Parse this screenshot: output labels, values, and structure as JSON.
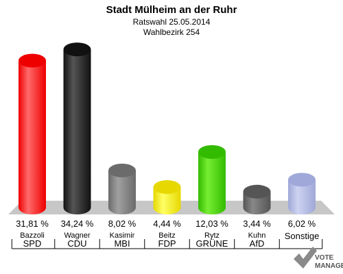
{
  "header": {
    "title": "Stadt Mülheim an der Ruhr",
    "subtitle1": "Ratswahl 25.05.2014",
    "subtitle2": "Wahlbezirk 254"
  },
  "logo": {
    "line1": "VOTE",
    "line2": "MANAGER"
  },
  "chart_data": {
    "type": "bar",
    "title": "Stadt Mülheim an der Ruhr",
    "subtitle": "Ratswahl 25.05.2014 · Wahlbezirk 254",
    "ylim": [
      0,
      35
    ],
    "unit": "%",
    "grid": false,
    "categories": [
      {
        "candidate": "Bazzoli",
        "party": "SPD",
        "value": 31.81,
        "label": "31,81 %",
        "color": "#ee0000",
        "highlight": "#ff6a6a"
      },
      {
        "candidate": "Wagner",
        "party": "CDU",
        "value": 34.24,
        "label": "34,24 %",
        "color": "#111111",
        "highlight": "#555555"
      },
      {
        "candidate": "Kasimir",
        "party": "MBI",
        "value": 8.02,
        "label": "8,02 %",
        "color": "#6b6b6b",
        "highlight": "#a0a0a0"
      },
      {
        "candidate": "Beitz",
        "party": "FDP",
        "value": 4.44,
        "label": "4,44 %",
        "color": "#e6d800",
        "highlight": "#ffff66"
      },
      {
        "candidate": "Rytz",
        "party": "GRÜNE",
        "value": 12.03,
        "label": "12,03 %",
        "color": "#33bb00",
        "highlight": "#77ee33"
      },
      {
        "candidate": "Kuhn",
        "party": "AfD",
        "value": 3.44,
        "label": "3,44 %",
        "color": "#555555",
        "highlight": "#888888"
      },
      {
        "candidate": "",
        "party": "Sonstige",
        "value": 6.02,
        "label": "6,02 %",
        "color": "#9fa8d8",
        "highlight": "#cdd3f0"
      }
    ]
  }
}
